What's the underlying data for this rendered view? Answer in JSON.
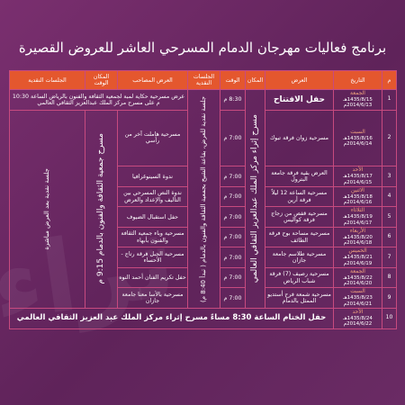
{
  "title": "برنامج فعاليات مهرجان الدمام المسرحي العاشر للعروض القصيرة",
  "headers": {
    "num": "م",
    "date": "التاريخ",
    "show": "العرض",
    "place": "المكان",
    "time": "الوقت",
    "sessions": "الجلسات النقدية",
    "show2": "العرض المصاحب",
    "place_time": "المكان الوقت",
    "sessions2": "الجلسات النقدية"
  },
  "rows": [
    {
      "num": "1",
      "day": "الجمعة",
      "hijri": "1435/8/15هـ",
      "greg": "2014/6/13م",
      "show": "حفل الافتتاح",
      "time": "8:30 م",
      "acc": "عرض مسرحية حكاية لمبة لجمعية الثقافة والفنون بالرياض الساعة 10:30 م على مسرح مركز الملك عبدالعزيز الثقافي العالمي"
    },
    {
      "num": "2",
      "day": "السبت",
      "hijri": "1435/8/16هـ",
      "greg": "2014/6/14م",
      "show": "مسرحية زوان فرقة تبوك",
      "time": "7:00 م",
      "acc": "مسرحية هاملت آخر من رأسي"
    },
    {
      "num": "3",
      "day": "الأحد",
      "hijri": "1435/8/17هـ",
      "greg": "2014/6/15م",
      "show": "العرض بقية فرقة جامعة البترول",
      "time": "7:00 م",
      "acc": "ندوة السينوغرافيا"
    },
    {
      "num": "4",
      "day": "الاثنين",
      "hijri": "1435/8/18هـ",
      "greg": "2014/6/16م",
      "show": "مسرحية الساعة 12 ليلاً فرقة أرين",
      "time": "7:00 م",
      "acc": "ندوة النص المسرحي بين التأليف والإعداد والعرض"
    },
    {
      "num": "5",
      "day": "الثلاثاء",
      "hijri": "1435/8/19هـ",
      "greg": "2014/6/17م",
      "show": "مسرحية قفص من زجاج فرقة كواليس",
      "time": "7:00 م",
      "acc": "حفل استقبال الضيوف"
    },
    {
      "num": "6",
      "day": "الأربعاء",
      "hijri": "1435/8/20هـ",
      "greg": "2014/6/18م",
      "show": "مسرحية مساحة بوح فرقة الطائف",
      "time": "7:00 م",
      "acc": "مسرحية وباء جمعية الثقافة والفنون بأبهاء"
    },
    {
      "num": "7",
      "day": "الخميس",
      "hijri": "1435/8/21هـ",
      "greg": "2014/6/19م",
      "show": "مسرحية طلاسم جامعة جازان",
      "time": "7:00 م",
      "acc": "مسرحية الجبل فرقة رتاج - الأحساء"
    },
    {
      "num": "8",
      "day": "الجمعة",
      "hijri": "1435/8/22هـ",
      "greg": "2014/6/20م",
      "show": "مسرحية رصيف (7) فرقة شباب الرياض",
      "time": "7:00 م",
      "acc": "حفل تكريم الفنان أحمد النوه"
    },
    {
      "num": "9",
      "day": "السبت",
      "hijri": "1435/8/23هـ",
      "greg": "2014/6/21م",
      "show": "مسرحية شمعة فرح أستديو الممثل بالدمام",
      "time": "7:00 م",
      "acc": "مسرحية بالأسا معنا جامعة جازان"
    },
    {
      "num": "10",
      "day": "الأحد",
      "hijri": "1435/8/24هـ",
      "greg": "2014/6/22م",
      "closing": "حفل الختام الساعة 8:30 مساءً مسرح إثراء مركز الملك عبد العزيز الثقافي العالمي"
    }
  ],
  "place_main": "مسرح إثراء مركز الملك عبدالعزيز الثقافي العالمي",
  "sessions_main": "جلسة نقدية للعرض، بقاعة الشيخ بجمعية الثقافة والفنون بالدمام ( تبدأ 8:40 م)",
  "place_second": "مسرح جمعية الثقافة والفنون بالدمام 9:15 م",
  "sessions_second": "جلسة نقدية بعد العرض مباشرة",
  "watermark": "ثراء"
}
